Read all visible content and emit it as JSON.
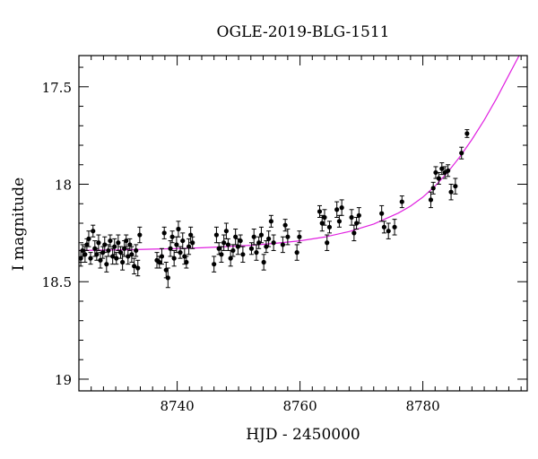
{
  "chart_data": {
    "type": "scatter",
    "title": "OGLE-2019-BLG-1511",
    "xlabel": "HJD - 2450000",
    "ylabel": "I magnitude",
    "xlim": [
      8724,
      8797
    ],
    "ylim": [
      19.06,
      17.34
    ],
    "y_inverted": true,
    "x_ticks": [
      8740,
      8760,
      8780
    ],
    "y_ticks": [
      17.5,
      18,
      18.5,
      19
    ],
    "y_tick_labels": [
      "17.5",
      "18",
      "18.5",
      "19"
    ],
    "x_tick_labels": [
      "8740",
      "8760",
      "8780"
    ],
    "model_color": "#e020e0",
    "point_color": "#000000",
    "model": {
      "x": [
        8724,
        8728,
        8732,
        8736,
        8740,
        8744,
        8748,
        8752,
        8756,
        8760,
        8764,
        8768,
        8772,
        8776,
        8778,
        8780,
        8782,
        8784,
        8786,
        8788,
        8790,
        8792,
        8794,
        8796
      ],
      "y": [
        18.34,
        18.338,
        18.336,
        18.333,
        18.33,
        18.326,
        18.32,
        18.313,
        18.303,
        18.29,
        18.271,
        18.243,
        18.204,
        18.148,
        18.112,
        18.066,
        18.009,
        17.94,
        17.86,
        17.77,
        17.67,
        17.56,
        17.44,
        17.32
      ]
    },
    "points": [
      {
        "x": 8724.3,
        "y": 18.38,
        "err": 0.04
      },
      {
        "x": 8724.6,
        "y": 18.34,
        "err": 0.03
      },
      {
        "x": 8725.0,
        "y": 18.36,
        "err": 0.04
      },
      {
        "x": 8725.3,
        "y": 18.31,
        "err": 0.03
      },
      {
        "x": 8725.6,
        "y": 18.28,
        "err": 0.04
      },
      {
        "x": 8725.9,
        "y": 18.38,
        "err": 0.03
      },
      {
        "x": 8726.3,
        "y": 18.24,
        "err": 0.03
      },
      {
        "x": 8726.6,
        "y": 18.33,
        "err": 0.04
      },
      {
        "x": 8726.9,
        "y": 18.36,
        "err": 0.03
      },
      {
        "x": 8727.2,
        "y": 18.3,
        "err": 0.04
      },
      {
        "x": 8727.5,
        "y": 18.39,
        "err": 0.04
      },
      {
        "x": 8727.9,
        "y": 18.35,
        "err": 0.03
      },
      {
        "x": 8728.2,
        "y": 18.31,
        "err": 0.04
      },
      {
        "x": 8728.5,
        "y": 18.41,
        "err": 0.04
      },
      {
        "x": 8728.8,
        "y": 18.34,
        "err": 0.03
      },
      {
        "x": 8729.1,
        "y": 18.29,
        "err": 0.03
      },
      {
        "x": 8729.5,
        "y": 18.37,
        "err": 0.04
      },
      {
        "x": 8729.8,
        "y": 18.32,
        "err": 0.04
      },
      {
        "x": 8730.1,
        "y": 18.38,
        "err": 0.03
      },
      {
        "x": 8730.4,
        "y": 18.3,
        "err": 0.04
      },
      {
        "x": 8730.8,
        "y": 18.35,
        "err": 0.03
      },
      {
        "x": 8731.1,
        "y": 18.4,
        "err": 0.04
      },
      {
        "x": 8731.4,
        "y": 18.33,
        "err": 0.04
      },
      {
        "x": 8731.7,
        "y": 18.29,
        "err": 0.03
      },
      {
        "x": 8732.0,
        "y": 18.37,
        "err": 0.04
      },
      {
        "x": 8732.3,
        "y": 18.31,
        "err": 0.03
      },
      {
        "x": 8732.6,
        "y": 18.36,
        "err": 0.04
      },
      {
        "x": 8733.0,
        "y": 18.42,
        "err": 0.04
      },
      {
        "x": 8733.3,
        "y": 18.34,
        "err": 0.03
      },
      {
        "x": 8733.6,
        "y": 18.43,
        "err": 0.04
      },
      {
        "x": 8733.9,
        "y": 18.26,
        "err": 0.04
      },
      {
        "x": 8736.7,
        "y": 18.39,
        "err": 0.04
      },
      {
        "x": 8737.1,
        "y": 18.4,
        "err": 0.03
      },
      {
        "x": 8737.5,
        "y": 18.37,
        "err": 0.04
      },
      {
        "x": 8737.9,
        "y": 18.25,
        "err": 0.03
      },
      {
        "x": 8738.2,
        "y": 18.44,
        "err": 0.04
      },
      {
        "x": 8738.5,
        "y": 18.48,
        "err": 0.05
      },
      {
        "x": 8738.9,
        "y": 18.33,
        "err": 0.04
      },
      {
        "x": 8739.2,
        "y": 18.27,
        "err": 0.03
      },
      {
        "x": 8739.5,
        "y": 18.38,
        "err": 0.04
      },
      {
        "x": 8739.9,
        "y": 18.31,
        "err": 0.04
      },
      {
        "x": 8740.2,
        "y": 18.23,
        "err": 0.04
      },
      {
        "x": 8740.5,
        "y": 18.35,
        "err": 0.03
      },
      {
        "x": 8740.9,
        "y": 18.29,
        "err": 0.04
      },
      {
        "x": 8741.2,
        "y": 18.37,
        "err": 0.04
      },
      {
        "x": 8741.5,
        "y": 18.4,
        "err": 0.03
      },
      {
        "x": 8741.9,
        "y": 18.32,
        "err": 0.04
      },
      {
        "x": 8742.2,
        "y": 18.26,
        "err": 0.04
      },
      {
        "x": 8742.5,
        "y": 18.3,
        "err": 0.03
      },
      {
        "x": 8746.0,
        "y": 18.41,
        "err": 0.04
      },
      {
        "x": 8746.4,
        "y": 18.26,
        "err": 0.04
      },
      {
        "x": 8746.8,
        "y": 18.33,
        "err": 0.03
      },
      {
        "x": 8747.2,
        "y": 18.36,
        "err": 0.04
      },
      {
        "x": 8747.6,
        "y": 18.3,
        "err": 0.04
      },
      {
        "x": 8748.0,
        "y": 18.24,
        "err": 0.04
      },
      {
        "x": 8748.3,
        "y": 18.31,
        "err": 0.03
      },
      {
        "x": 8748.7,
        "y": 18.38,
        "err": 0.04
      },
      {
        "x": 8749.1,
        "y": 18.34,
        "err": 0.03
      },
      {
        "x": 8749.5,
        "y": 18.27,
        "err": 0.04
      },
      {
        "x": 8749.9,
        "y": 18.32,
        "err": 0.04
      },
      {
        "x": 8750.3,
        "y": 18.29,
        "err": 0.03
      },
      {
        "x": 8750.7,
        "y": 18.36,
        "err": 0.04
      },
      {
        "x": 8752.1,
        "y": 18.33,
        "err": 0.03
      },
      {
        "x": 8752.5,
        "y": 18.27,
        "err": 0.04
      },
      {
        "x": 8752.9,
        "y": 18.35,
        "err": 0.04
      },
      {
        "x": 8753.3,
        "y": 18.3,
        "err": 0.03
      },
      {
        "x": 8753.7,
        "y": 18.26,
        "err": 0.04
      },
      {
        "x": 8754.1,
        "y": 18.4,
        "err": 0.04
      },
      {
        "x": 8754.5,
        "y": 18.32,
        "err": 0.03
      },
      {
        "x": 8754.9,
        "y": 18.28,
        "err": 0.04
      },
      {
        "x": 8755.3,
        "y": 18.19,
        "err": 0.03
      },
      {
        "x": 8755.7,
        "y": 18.3,
        "err": 0.04
      },
      {
        "x": 8757.2,
        "y": 18.31,
        "err": 0.04
      },
      {
        "x": 8757.6,
        "y": 18.21,
        "err": 0.03
      },
      {
        "x": 8758.0,
        "y": 18.27,
        "err": 0.04
      },
      {
        "x": 8759.5,
        "y": 18.35,
        "err": 0.04
      },
      {
        "x": 8759.9,
        "y": 18.27,
        "err": 0.03
      },
      {
        "x": 8763.2,
        "y": 18.14,
        "err": 0.03
      },
      {
        "x": 8763.6,
        "y": 18.2,
        "err": 0.04
      },
      {
        "x": 8764.0,
        "y": 18.17,
        "err": 0.04
      },
      {
        "x": 8764.4,
        "y": 18.3,
        "err": 0.04
      },
      {
        "x": 8764.8,
        "y": 18.22,
        "err": 0.03
      },
      {
        "x": 8766.0,
        "y": 18.13,
        "err": 0.04
      },
      {
        "x": 8766.4,
        "y": 18.19,
        "err": 0.03
      },
      {
        "x": 8766.8,
        "y": 18.12,
        "err": 0.04
      },
      {
        "x": 8768.4,
        "y": 18.17,
        "err": 0.04
      },
      {
        "x": 8768.8,
        "y": 18.25,
        "err": 0.04
      },
      {
        "x": 8769.2,
        "y": 18.2,
        "err": 0.03
      },
      {
        "x": 8769.6,
        "y": 18.16,
        "err": 0.04
      },
      {
        "x": 8773.3,
        "y": 18.15,
        "err": 0.04
      },
      {
        "x": 8773.7,
        "y": 18.22,
        "err": 0.03
      },
      {
        "x": 8774.4,
        "y": 18.24,
        "err": 0.04
      },
      {
        "x": 8775.4,
        "y": 18.22,
        "err": 0.04
      },
      {
        "x": 8776.6,
        "y": 18.09,
        "err": 0.03
      },
      {
        "x": 8781.3,
        "y": 18.08,
        "err": 0.04
      },
      {
        "x": 8781.7,
        "y": 18.02,
        "err": 0.03
      },
      {
        "x": 8782.1,
        "y": 17.94,
        "err": 0.03
      },
      {
        "x": 8782.6,
        "y": 17.97,
        "err": 0.03
      },
      {
        "x": 8783.1,
        "y": 17.92,
        "err": 0.03
      },
      {
        "x": 8783.6,
        "y": 17.94,
        "err": 0.03
      },
      {
        "x": 8784.1,
        "y": 17.93,
        "err": 0.03
      },
      {
        "x": 8784.6,
        "y": 18.04,
        "err": 0.04
      },
      {
        "x": 8785.3,
        "y": 18.01,
        "err": 0.04
      },
      {
        "x": 8786.3,
        "y": 17.84,
        "err": 0.03
      },
      {
        "x": 8787.2,
        "y": 17.74,
        "err": 0.02
      }
    ]
  }
}
